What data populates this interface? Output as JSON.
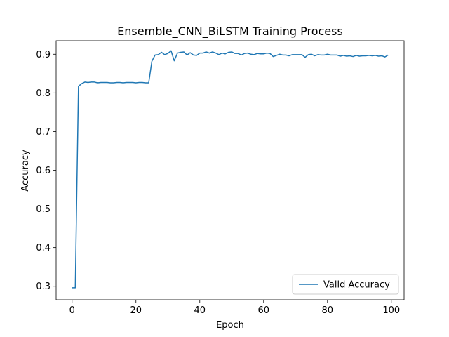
{
  "chart_data": {
    "type": "line",
    "title": "Ensemble_CNN_BiLSTM Training Process",
    "xlabel": "Epoch",
    "ylabel": "Accuracy",
    "xlim": [
      -5,
      104
    ],
    "ylim": [
      0.265,
      0.935
    ],
    "xticks": [
      0,
      20,
      40,
      60,
      80,
      100
    ],
    "yticks": [
      0.3,
      0.4,
      0.5,
      0.6,
      0.7,
      0.8,
      0.9
    ],
    "grid": false,
    "legend_position": "lower-right",
    "series": [
      {
        "name": "Valid Accuracy",
        "color": "#1f77b4",
        "x": [
          0,
          1,
          2,
          3,
          4,
          5,
          6,
          7,
          8,
          9,
          10,
          11,
          12,
          13,
          14,
          15,
          16,
          17,
          18,
          19,
          20,
          21,
          22,
          23,
          24,
          25,
          26,
          27,
          28,
          29,
          30,
          31,
          32,
          33,
          34,
          35,
          36,
          37,
          38,
          39,
          40,
          41,
          42,
          43,
          44,
          45,
          46,
          47,
          48,
          49,
          50,
          51,
          52,
          53,
          54,
          55,
          56,
          57,
          58,
          59,
          60,
          61,
          62,
          63,
          64,
          65,
          66,
          67,
          68,
          69,
          70,
          71,
          72,
          73,
          74,
          75,
          76,
          77,
          78,
          79,
          80,
          81,
          82,
          83,
          84,
          85,
          86,
          87,
          88,
          89,
          90,
          91,
          92,
          93,
          94,
          95,
          96,
          97,
          98,
          99
        ],
        "values": [
          0.296,
          0.296,
          0.817,
          0.824,
          0.828,
          0.827,
          0.828,
          0.828,
          0.826,
          0.827,
          0.827,
          0.827,
          0.826,
          0.826,
          0.827,
          0.827,
          0.826,
          0.827,
          0.827,
          0.827,
          0.826,
          0.827,
          0.827,
          0.826,
          0.826,
          0.882,
          0.898,
          0.899,
          0.905,
          0.899,
          0.902,
          0.909,
          0.883,
          0.903,
          0.905,
          0.906,
          0.898,
          0.904,
          0.898,
          0.897,
          0.903,
          0.903,
          0.906,
          0.903,
          0.906,
          0.903,
          0.899,
          0.903,
          0.901,
          0.905,
          0.906,
          0.902,
          0.902,
          0.898,
          0.902,
          0.903,
          0.9,
          0.899,
          0.902,
          0.901,
          0.901,
          0.903,
          0.902,
          0.894,
          0.897,
          0.9,
          0.898,
          0.898,
          0.896,
          0.899,
          0.899,
          0.899,
          0.899,
          0.892,
          0.899,
          0.9,
          0.896,
          0.899,
          0.898,
          0.898,
          0.9,
          0.898,
          0.898,
          0.898,
          0.895,
          0.897,
          0.895,
          0.896,
          0.894,
          0.897,
          0.895,
          0.896,
          0.896,
          0.897,
          0.896,
          0.897,
          0.895,
          0.896,
          0.893,
          0.898
        ]
      }
    ]
  }
}
